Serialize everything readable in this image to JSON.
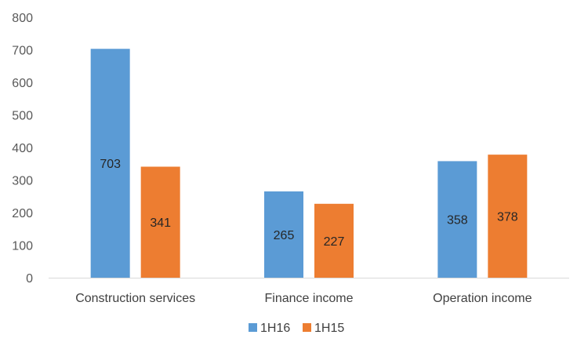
{
  "chart_data": {
    "type": "bar",
    "categories": [
      "Construction services",
      "Finance income",
      "Operation income"
    ],
    "series": [
      {
        "name": "1H16",
        "values": [
          703,
          265,
          358
        ],
        "color": "#5B9BD5"
      },
      {
        "name": "1H15",
        "values": [
          341,
          227,
          378
        ],
        "color": "#ED7D31"
      }
    ],
    "y_ticks": [
      "0",
      "100",
      "200",
      "300",
      "400",
      "500",
      "600",
      "700",
      "800"
    ],
    "ylim": [
      0,
      800
    ],
    "grid": false,
    "legend_position": "bottom",
    "data_labels": true
  }
}
